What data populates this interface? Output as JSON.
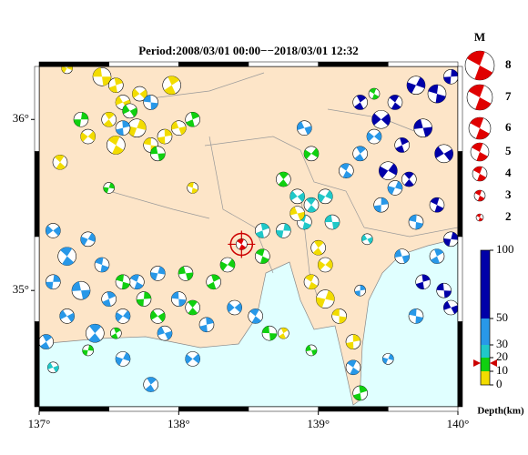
{
  "map": {
    "title": "Period:2008/03/01 00:00−−2018/03/01 12:32",
    "lonlim": [
      137,
      140
    ],
    "latlim": [
      34.32,
      36.31
    ],
    "lonticks": [
      {
        "value": 137,
        "label": "137°"
      },
      {
        "value": 138,
        "label": "138°"
      },
      {
        "value": 139,
        "label": "139°"
      },
      {
        "value": 140,
        "label": "140°"
      }
    ],
    "latticks": [
      {
        "value": 35,
        "label": "35°"
      },
      {
        "value": 36,
        "label": "36°"
      }
    ],
    "magnitude_legend": {
      "title": "M",
      "values": [
        8,
        7,
        6,
        5,
        4,
        3,
        2
      ]
    },
    "depth_scale": {
      "label": "Depth(km)",
      "ticks": [
        0,
        10,
        20,
        30,
        50,
        100
      ],
      "colors": [
        "#f2dc00",
        "#10d010",
        "#20c8c8",
        "#2898e8",
        "#0000a8"
      ]
    },
    "latest": [
      138.45,
      35.27
    ],
    "events": [
      [
        137.45,
        36.25,
        5,
        5
      ],
      [
        137.55,
        36.2,
        5,
        4
      ],
      [
        137.6,
        36.1,
        5,
        4
      ],
      [
        137.5,
        36.0,
        5,
        4
      ],
      [
        137.35,
        35.9,
        5,
        4
      ],
      [
        137.55,
        35.85,
        5,
        5
      ],
      [
        137.7,
        35.95,
        5,
        5
      ],
      [
        137.8,
        35.85,
        5,
        4
      ],
      [
        137.9,
        35.9,
        5,
        4
      ],
      [
        138.0,
        35.95,
        5,
        4
      ],
      [
        137.95,
        36.2,
        5,
        5
      ],
      [
        137.72,
        36.15,
        5,
        4
      ],
      [
        137.15,
        35.75,
        5,
        4
      ],
      [
        137.2,
        36.3,
        5,
        3
      ],
      [
        138.1,
        35.6,
        5,
        3
      ],
      [
        137.3,
        36.0,
        15,
        4
      ],
      [
        137.85,
        35.8,
        15,
        4
      ],
      [
        138.1,
        36.0,
        15,
        4
      ],
      [
        137.65,
        36.05,
        15,
        4
      ],
      [
        138.75,
        35.65,
        15,
        4
      ],
      [
        138.95,
        35.8,
        15,
        4
      ],
      [
        139.4,
        36.15,
        15,
        3
      ],
      [
        137.5,
        35.6,
        15,
        3
      ],
      [
        137.8,
        36.1,
        40,
        4
      ],
      [
        137.6,
        35.95,
        40,
        4
      ],
      [
        138.9,
        35.95,
        40,
        4
      ],
      [
        139.3,
        36.1,
        70,
        4
      ],
      [
        139.45,
        36.0,
        70,
        5
      ],
      [
        139.55,
        36.1,
        70,
        4
      ],
      [
        139.7,
        36.2,
        70,
        5
      ],
      [
        139.85,
        36.15,
        70,
        5
      ],
      [
        139.95,
        36.25,
        70,
        4
      ],
      [
        139.75,
        35.95,
        70,
        5
      ],
      [
        139.6,
        35.85,
        70,
        4
      ],
      [
        139.9,
        35.8,
        70,
        5
      ],
      [
        139.65,
        35.65,
        70,
        4
      ],
      [
        139.5,
        35.7,
        70,
        5
      ],
      [
        139.85,
        35.5,
        70,
        4
      ],
      [
        139.95,
        35.3,
        70,
        4
      ],
      [
        139.9,
        35.0,
        70,
        4
      ],
      [
        139.75,
        35.05,
        70,
        4
      ],
      [
        139.95,
        34.9,
        70,
        4
      ],
      [
        139.3,
        35.8,
        40,
        4
      ],
      [
        139.4,
        35.9,
        40,
        4
      ],
      [
        139.2,
        35.7,
        40,
        4
      ],
      [
        139.55,
        35.6,
        40,
        4
      ],
      [
        139.7,
        35.4,
        40,
        4
      ],
      [
        139.45,
        35.5,
        40,
        4
      ],
      [
        139.6,
        35.2,
        40,
        4
      ],
      [
        139.85,
        35.2,
        40,
        4
      ],
      [
        138.85,
        35.55,
        25,
        4
      ],
      [
        138.95,
        35.5,
        25,
        4
      ],
      [
        139.05,
        35.55,
        25,
        4
      ],
      [
        138.9,
        35.4,
        25,
        4
      ],
      [
        138.75,
        35.35,
        25,
        4
      ],
      [
        139.1,
        35.4,
        25,
        4
      ],
      [
        138.6,
        35.35,
        25,
        4
      ],
      [
        139.35,
        35.3,
        25,
        3
      ],
      [
        139.0,
        35.25,
        5,
        4
      ],
      [
        139.05,
        35.15,
        5,
        4
      ],
      [
        138.95,
        35.05,
        5,
        4
      ],
      [
        139.05,
        34.95,
        5,
        5
      ],
      [
        139.15,
        34.85,
        5,
        4
      ],
      [
        139.25,
        34.7,
        5,
        4
      ],
      [
        138.85,
        35.45,
        5,
        4
      ],
      [
        138.75,
        34.75,
        5,
        3
      ],
      [
        137.1,
        35.35,
        40,
        4
      ],
      [
        137.2,
        35.2,
        40,
        5
      ],
      [
        137.35,
        35.3,
        40,
        4
      ],
      [
        137.45,
        35.15,
        40,
        4
      ],
      [
        137.1,
        35.05,
        40,
        4
      ],
      [
        137.3,
        35.0,
        40,
        5
      ],
      [
        137.5,
        34.95,
        40,
        4
      ],
      [
        137.2,
        34.85,
        40,
        4
      ],
      [
        137.4,
        34.75,
        40,
        5
      ],
      [
        137.6,
        34.85,
        40,
        4
      ],
      [
        137.7,
        35.05,
        40,
        4
      ],
      [
        137.85,
        35.1,
        40,
        4
      ],
      [
        138.0,
        34.95,
        40,
        4
      ],
      [
        138.2,
        34.8,
        40,
        4
      ],
      [
        137.9,
        34.75,
        40,
        4
      ],
      [
        137.05,
        34.7,
        40,
        4
      ],
      [
        138.4,
        34.9,
        40,
        4
      ],
      [
        138.55,
        34.85,
        40,
        4
      ],
      [
        137.6,
        34.6,
        40,
        4
      ],
      [
        137.6,
        35.05,
        15,
        4
      ],
      [
        137.75,
        34.95,
        15,
        4
      ],
      [
        138.05,
        35.1,
        15,
        4
      ],
      [
        138.25,
        35.05,
        15,
        4
      ],
      [
        137.85,
        34.85,
        15,
        4
      ],
      [
        138.1,
        34.9,
        15,
        4
      ],
      [
        138.35,
        35.15,
        15,
        4
      ],
      [
        138.6,
        35.2,
        15,
        4
      ],
      [
        137.35,
        34.65,
        15,
        3
      ],
      [
        138.65,
        34.75,
        15,
        4
      ],
      [
        139.3,
        34.4,
        15,
        4
      ],
      [
        137.1,
        34.55,
        25,
        3
      ],
      [
        137.8,
        34.45,
        40,
        4
      ],
      [
        138.1,
        34.6,
        40,
        4
      ],
      [
        139.25,
        34.55,
        40,
        4
      ],
      [
        139.5,
        34.6,
        40,
        3
      ],
      [
        139.7,
        34.85,
        40,
        4
      ],
      [
        139.3,
        35.0,
        40,
        3
      ],
      [
        138.95,
        34.65,
        15,
        3
      ],
      [
        137.55,
        34.75,
        15,
        3
      ]
    ]
  }
}
